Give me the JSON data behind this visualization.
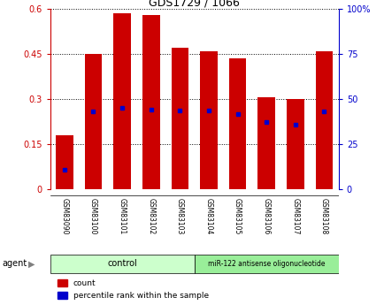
{
  "title": "GDS1729 / 1066",
  "samples": [
    "GSM83090",
    "GSM83100",
    "GSM83101",
    "GSM83102",
    "GSM83103",
    "GSM83104",
    "GSM83105",
    "GSM83106",
    "GSM83107",
    "GSM83108"
  ],
  "count_values": [
    0.18,
    0.45,
    0.585,
    0.58,
    0.47,
    0.46,
    0.435,
    0.305,
    0.3,
    0.46
  ],
  "percentile_values": [
    0.065,
    0.26,
    0.27,
    0.265,
    0.262,
    0.262,
    0.25,
    0.225,
    0.215,
    0.26
  ],
  "bar_color": "#cc0000",
  "percentile_color": "#0000cc",
  "ylim_left": [
    0,
    0.6
  ],
  "ylim_right": [
    0,
    1.0
  ],
  "yticks_left": [
    0,
    0.15,
    0.3,
    0.45,
    0.6
  ],
  "ytick_labels_left": [
    "0",
    "0.15",
    "0.3",
    "0.45",
    "0.6"
  ],
  "yticks_right_vals": [
    0,
    0.25,
    0.5,
    0.75,
    1.0
  ],
  "ytick_labels_right": [
    "0",
    "25",
    "50",
    "75",
    "100%"
  ],
  "ctrl_n": 5,
  "treat_n": 5,
  "control_label": "control",
  "treatment_label": "miR-122 antisense oligonucleotide",
  "agent_label": "agent",
  "legend_count": "count",
  "legend_percentile": "percentile rank within the sample",
  "control_color": "#ccffcc",
  "treatment_color": "#99ee99",
  "bar_width": 0.6,
  "grid_color": "black",
  "label_bg": "#d0d0d0",
  "plot_bg": "#ffffff"
}
